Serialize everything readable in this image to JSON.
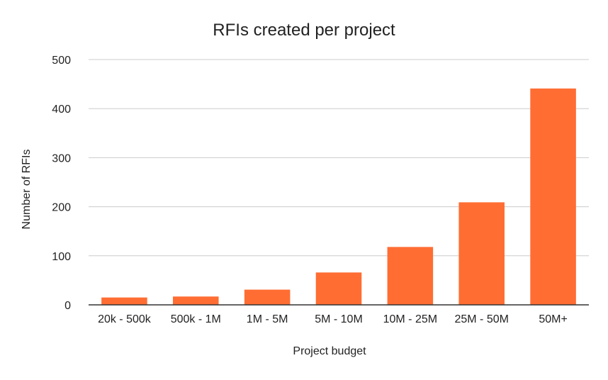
{
  "chart_data": {
    "type": "bar",
    "title": "RFIs created per project",
    "xlabel": "Project budget",
    "ylabel": "Number of RFIs",
    "categories": [
      "20k - 500k",
      "500k - 1M",
      "1M - 5M",
      "5M - 10M",
      "10M - 25M",
      "25M - 50M",
      "50M+"
    ],
    "values": [
      15,
      17,
      31,
      66,
      118,
      209,
      441
    ],
    "ylim": [
      0,
      500
    ],
    "yticks": [
      0,
      100,
      200,
      300,
      400,
      500
    ],
    "grid": true,
    "legend": "none",
    "colors": {
      "bar": "#ff6d33",
      "grid": "#cccccc",
      "axis": "#333333",
      "text": "#222222"
    }
  }
}
